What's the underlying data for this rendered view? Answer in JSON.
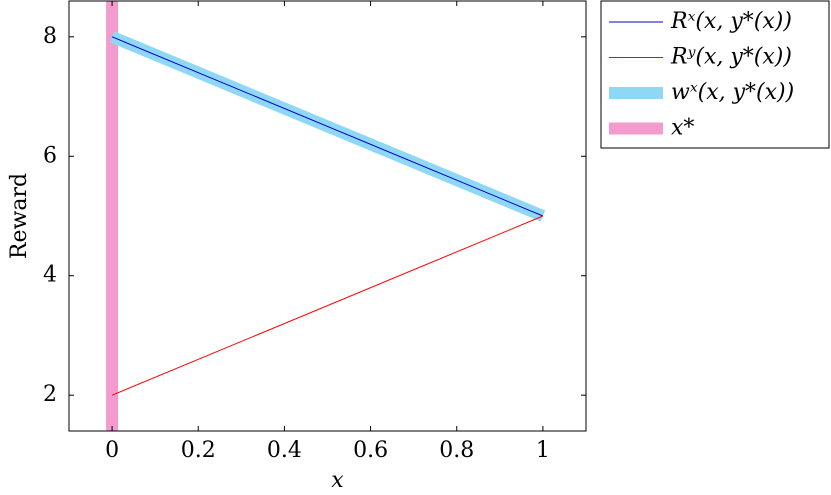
{
  "chart_data": {
    "type": "line",
    "xlabel": "x",
    "ylabel": "Reward",
    "xlim": [
      -0.1,
      1.1
    ],
    "xticks": [
      0,
      0.2,
      0.4,
      0.6,
      0.8,
      1
    ],
    "ylim": [
      1.4,
      8.6
    ],
    "yticks": [
      2,
      4,
      6,
      8
    ],
    "series": [
      {
        "name": "Rˣ(x, y*(x))",
        "color": "#0000cc",
        "line_width": 1,
        "x": [
          0,
          1
        ],
        "values": [
          8,
          5
        ]
      },
      {
        "name": "Rʸ(x, y*(x))",
        "color": "#ff0000",
        "line_width": 1,
        "x": [
          0,
          1
        ],
        "values": [
          2,
          5
        ]
      },
      {
        "name": "wˣ(x, y*(x))",
        "color": "#8fd8f5",
        "line_width": 12,
        "x": [
          0,
          1
        ],
        "values": [
          8,
          5
        ]
      }
    ],
    "vline": {
      "name": "x*",
      "color": "#f39bcd",
      "line_width": 12,
      "value": 0
    },
    "legend": "outside-top-right"
  }
}
